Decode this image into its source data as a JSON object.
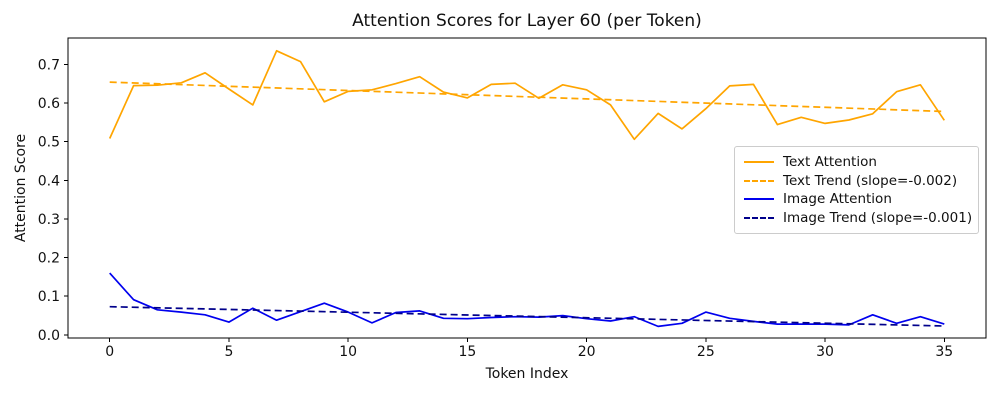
{
  "title": "Attention Scores for Layer 60 (per Token)",
  "chart_data": {
    "type": "line",
    "title": "Attention Scores for Layer 60 (per Token)",
    "xlabel": "Token Index",
    "ylabel": "Attention Score",
    "xlim": [
      -1.75,
      36.75
    ],
    "ylim": [
      -0.008,
      0.768
    ],
    "xticks": [
      0,
      5,
      10,
      15,
      20,
      25,
      30,
      35
    ],
    "yticks": [
      0.0,
      0.1,
      0.2,
      0.3,
      0.4,
      0.5,
      0.6,
      0.7
    ],
    "grid": false,
    "legend_position": "center right",
    "series": [
      {
        "name": "Text Attention",
        "color": "#FFA500",
        "style": "solid",
        "x": [
          0,
          1,
          2,
          3,
          4,
          5,
          6,
          7,
          8,
          9,
          10,
          11,
          12,
          13,
          14,
          15,
          16,
          17,
          18,
          19,
          20,
          21,
          22,
          23,
          24,
          25,
          26,
          27,
          28,
          29,
          30,
          31,
          32,
          33,
          34,
          35
        ],
        "values": [
          0.508,
          0.645,
          0.646,
          0.652,
          0.678,
          0.636,
          0.595,
          0.735,
          0.707,
          0.603,
          0.63,
          0.634,
          0.65,
          0.668,
          0.628,
          0.613,
          0.648,
          0.651,
          0.612,
          0.647,
          0.634,
          0.595,
          0.506,
          0.573,
          0.533,
          0.585,
          0.644,
          0.648,
          0.544,
          0.563,
          0.547,
          0.556,
          0.572,
          0.629,
          0.647,
          0.555
        ]
      },
      {
        "name": "Text Trend (slope=-0.002)",
        "color": "#FFA500",
        "style": "dashed",
        "x": [
          0,
          35
        ],
        "values": [
          0.654,
          0.578
        ],
        "slope_label": "-0.002"
      },
      {
        "name": "Image Attention",
        "color": "#0000EE",
        "style": "solid",
        "x": [
          0,
          1,
          2,
          3,
          4,
          5,
          6,
          7,
          8,
          9,
          10,
          11,
          12,
          13,
          14,
          15,
          16,
          17,
          18,
          19,
          20,
          21,
          22,
          23,
          24,
          25,
          26,
          27,
          28,
          29,
          30,
          31,
          32,
          33,
          34,
          35
        ],
        "values": [
          0.16,
          0.091,
          0.065,
          0.059,
          0.052,
          0.033,
          0.069,
          0.038,
          0.06,
          0.082,
          0.059,
          0.031,
          0.058,
          0.062,
          0.043,
          0.042,
          0.045,
          0.047,
          0.046,
          0.05,
          0.042,
          0.036,
          0.047,
          0.022,
          0.03,
          0.059,
          0.043,
          0.035,
          0.028,
          0.028,
          0.028,
          0.026,
          0.052,
          0.03,
          0.047,
          0.028
        ]
      },
      {
        "name": "Image Trend (slope=-0.001)",
        "color": "#00008B",
        "style": "dashed",
        "x": [
          0,
          35
        ],
        "values": [
          0.073,
          0.023
        ],
        "slope_label": "-0.001"
      }
    ]
  }
}
